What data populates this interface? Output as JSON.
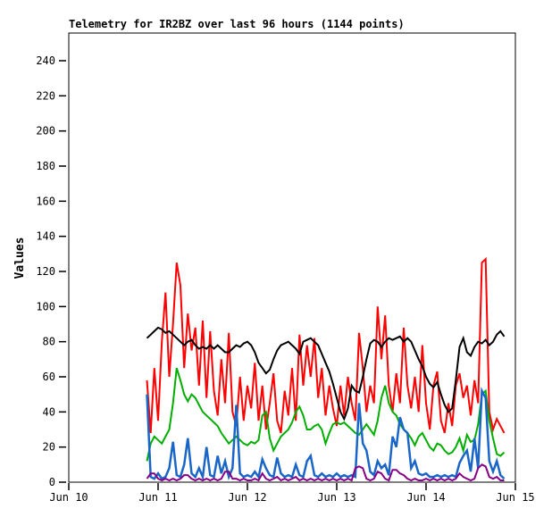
{
  "chart_data": {
    "type": "line",
    "title": "Telemetry for IR2BZ over last 96 hours (1144 points)",
    "xlabel": "",
    "ylabel": "Values",
    "grid": false,
    "legend": "none",
    "x_axis": {
      "unit": "hours from Jun 10 00:00",
      "xlim": [
        0,
        120
      ],
      "ticks": [
        {
          "t": 0,
          "label": "Jun 10"
        },
        {
          "t": 24,
          "label": "Jun 11"
        },
        {
          "t": 48,
          "label": "Jun 12"
        },
        {
          "t": 72,
          "label": "Jun 13"
        },
        {
          "t": 96,
          "label": "Jun 14"
        },
        {
          "t": 120,
          "label": "Jun 15"
        }
      ]
    },
    "y_axis": {
      "ylim": [
        0,
        256
      ],
      "ticks": [
        0,
        20,
        40,
        60,
        80,
        100,
        120,
        140,
        160,
        180,
        200,
        220,
        240
      ]
    },
    "sample_hours_start": 21,
    "sample_hours_step": 1,
    "series": [
      {
        "name": "channel-red",
        "color": "#FF0000",
        "width": 2,
        "values": [
          58,
          28,
          65,
          35,
          80,
          108,
          60,
          90,
          125,
          112,
          65,
          96,
          75,
          88,
          55,
          92,
          48,
          86,
          52,
          38,
          70,
          45,
          85,
          40,
          32,
          60,
          35,
          55,
          42,
          68,
          35,
          55,
          30,
          45,
          62,
          35,
          28,
          52,
          38,
          65,
          35,
          84,
          55,
          78,
          60,
          82,
          48,
          65,
          38,
          55,
          42,
          32,
          55,
          38,
          60,
          45,
          35,
          85,
          65,
          40,
          55,
          45,
          100,
          70,
          95,
          55,
          40,
          62,
          45,
          88,
          55,
          42,
          60,
          40,
          78,
          45,
          30,
          55,
          63,
          35,
          28,
          45,
          32,
          55,
          62,
          48,
          55,
          38,
          58,
          45,
          125,
          127,
          40,
          30,
          36,
          32,
          28
        ]
      },
      {
        "name": "channel-green",
        "color": "#00AE00",
        "width": 2,
        "values": [
          12,
          22,
          26,
          24,
          22,
          26,
          30,
          45,
          65,
          58,
          50,
          46,
          50,
          48,
          44,
          40,
          38,
          36,
          34,
          32,
          28,
          25,
          22,
          24,
          26,
          24,
          22,
          21,
          23,
          22,
          24,
          38,
          40,
          25,
          18,
          22,
          26,
          28,
          30,
          34,
          40,
          43,
          38,
          30,
          30,
          32,
          33,
          30,
          22,
          28,
          33,
          34,
          33,
          34,
          32,
          30,
          28,
          27,
          30,
          33,
          30,
          27,
          35,
          48,
          55,
          45,
          40,
          38,
          33,
          30,
          28,
          25,
          21,
          26,
          28,
          24,
          20,
          18,
          22,
          21,
          18,
          16,
          17,
          20,
          25,
          18,
          27,
          23,
          24,
          33,
          50,
          52,
          35,
          25,
          16,
          15,
          17
        ]
      },
      {
        "name": "channel-blue",
        "color": "#1A66C8",
        "width": 2.5,
        "values": [
          50,
          3,
          2,
          5,
          2,
          3,
          8,
          23,
          4,
          3,
          10,
          25,
          5,
          3,
          8,
          3,
          20,
          4,
          3,
          15,
          5,
          12,
          3,
          8,
          44,
          5,
          3,
          4,
          3,
          6,
          3,
          13,
          8,
          4,
          3,
          14,
          5,
          3,
          4,
          3,
          10,
          4,
          3,
          12,
          15,
          4,
          3,
          5,
          3,
          4,
          3,
          5,
          3,
          4,
          3,
          4,
          3,
          45,
          22,
          18,
          6,
          4,
          12,
          8,
          10,
          4,
          26,
          20,
          37,
          30,
          28,
          8,
          12,
          5,
          4,
          5,
          3,
          3,
          4,
          3,
          4,
          3,
          4,
          3,
          11,
          15,
          18,
          6,
          25,
          8,
          52,
          48,
          12,
          6,
          12,
          4,
          2
        ]
      },
      {
        "name": "channel-purple",
        "color": "#860086",
        "width": 2,
        "values": [
          2,
          5,
          5,
          2,
          1,
          2,
          1,
          2,
          1,
          2,
          4,
          4,
          2,
          1,
          2,
          1,
          2,
          1,
          2,
          1,
          2,
          6,
          6,
          2,
          2,
          1,
          2,
          1,
          1,
          2,
          1,
          5,
          2,
          1,
          2,
          3,
          1,
          2,
          1,
          2,
          3,
          1,
          2,
          1,
          2,
          1,
          2,
          1,
          2,
          1,
          2,
          1,
          2,
          1,
          2,
          1,
          8,
          9,
          8,
          2,
          1,
          2,
          6,
          5,
          2,
          1,
          7,
          7,
          5,
          4,
          2,
          1,
          2,
          1,
          1,
          2,
          1,
          2,
          1,
          2,
          1,
          2,
          1,
          2,
          5,
          3,
          2,
          1,
          2,
          8,
          10,
          9,
          3,
          2,
          3,
          1,
          1
        ]
      },
      {
        "name": "channel-black",
        "color": "#000000",
        "width": 2,
        "values": [
          82,
          84,
          86,
          88,
          87,
          85,
          86,
          84,
          82,
          80,
          78,
          80,
          81,
          78,
          76,
          77,
          76,
          78,
          76,
          78,
          76,
          74,
          74,
          76,
          78,
          77,
          79,
          80,
          78,
          74,
          68,
          65,
          62,
          64,
          70,
          75,
          78,
          79,
          80,
          78,
          76,
          73,
          80,
          81,
          82,
          80,
          78,
          73,
          68,
          63,
          56,
          48,
          40,
          36,
          42,
          55,
          52,
          51,
          60,
          70,
          79,
          81,
          80,
          77,
          80,
          82,
          81,
          82,
          83,
          80,
          82,
          80,
          75,
          70,
          66,
          60,
          56,
          54,
          57,
          50,
          44,
          40,
          42,
          58,
          77,
          82,
          74,
          72,
          77,
          80,
          79,
          81,
          78,
          80,
          84,
          86,
          83
        ]
      }
    ]
  }
}
